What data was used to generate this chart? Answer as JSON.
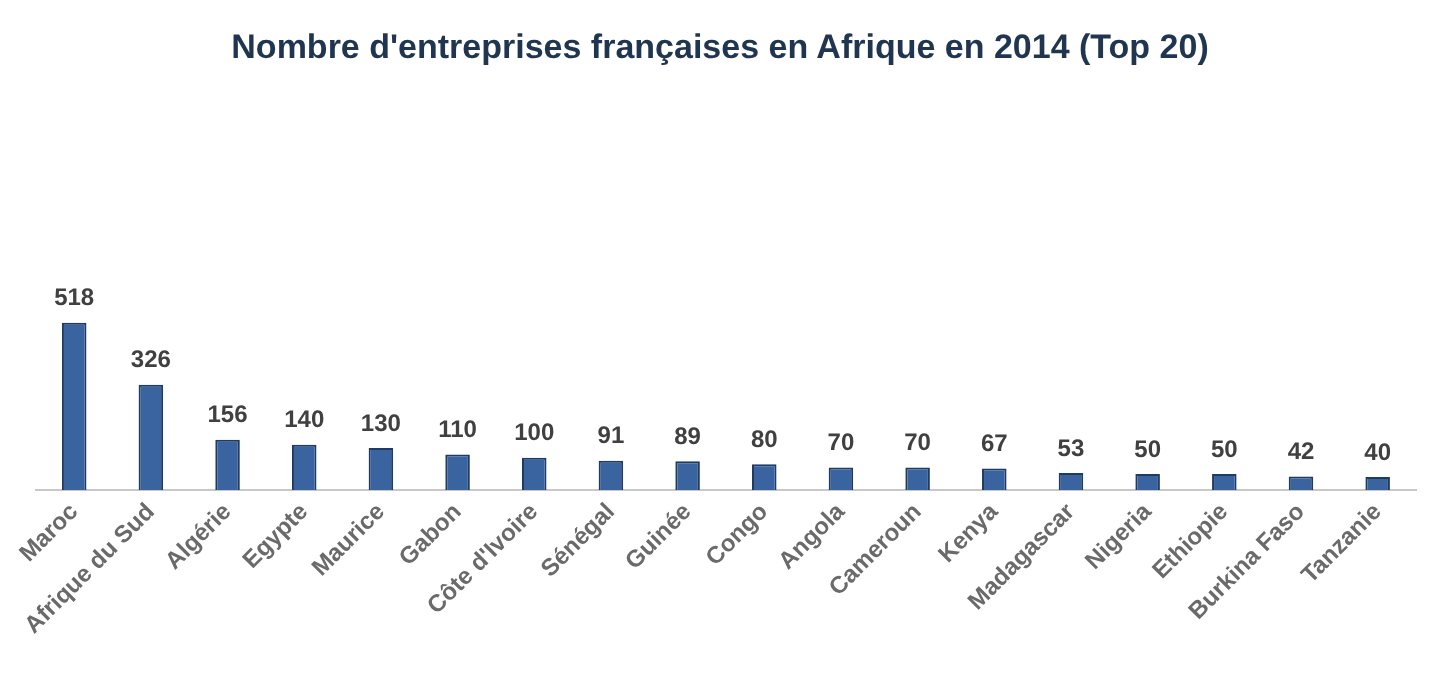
{
  "chart_data": {
    "type": "bar",
    "title": "Nombre d'entreprises françaises en Afrique en 2014 (Top 20)",
    "categories": [
      "Maroc",
      "Afrique du Sud",
      "Algérie",
      "Egypte",
      "Maurice",
      "Gabon",
      "Côte d'Ivoire",
      "Sénégal",
      "Guinée",
      "Congo",
      "Angola",
      "Cameroun",
      "Kenya",
      "Madagascar",
      "Nigeria",
      "Ethiopie",
      "Burkina Faso",
      "Tanzanie"
    ],
    "values": [
      518,
      326,
      156,
      140,
      130,
      110,
      100,
      91,
      89,
      80,
      70,
      70,
      67,
      53,
      50,
      50,
      42,
      40
    ],
    "color": "#3a64a0",
    "data_labels": true,
    "grid": false,
    "legend": false
  }
}
